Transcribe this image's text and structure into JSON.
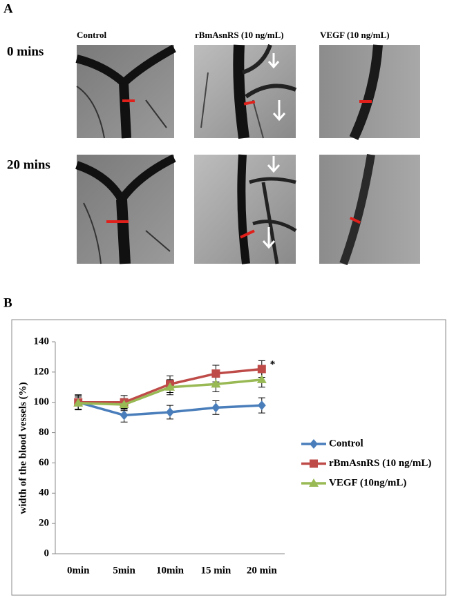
{
  "panel_a": {
    "label": "A",
    "columns": [
      "Control",
      "rBmAsnRS (10 ng/mL)",
      "VEGF (10 ng/mL)"
    ],
    "rows": [
      "0 mins",
      "20 mins"
    ]
  },
  "panel_b_label": "B",
  "chart_data": {
    "type": "line",
    "y_label": "width of the blood vessels (%)",
    "categories": [
      "0min",
      "5min",
      "10min",
      "15 min",
      "20 min"
    ],
    "series": [
      {
        "name": "Control",
        "color": "#4a7ebb",
        "marker": "diamond",
        "values": [
          100,
          91.5,
          93.5,
          96.5,
          98
        ],
        "errors": [
          5,
          4.5,
          4.5,
          4.5,
          5
        ]
      },
      {
        "name": "rBmAsnRS (10 ng/mL)",
        "color": "#be4b48",
        "marker": "square",
        "values": [
          100,
          100,
          112,
          119,
          122
        ],
        "errors": [
          4.5,
          4.5,
          5.5,
          5.5,
          5.5
        ]
      },
      {
        "name": "VEGF (10ng/mL)",
        "color": "#98b954",
        "marker": "triangle",
        "values": [
          99.5,
          98.5,
          110,
          112,
          115
        ],
        "errors": [
          4,
          4,
          5,
          5,
          5
        ]
      }
    ],
    "annotation": "*",
    "ylim": [
      0,
      140
    ],
    "yticks": [
      0,
      20,
      40,
      60,
      80,
      100,
      120,
      140
    ],
    "grid": false,
    "legend": "right"
  }
}
